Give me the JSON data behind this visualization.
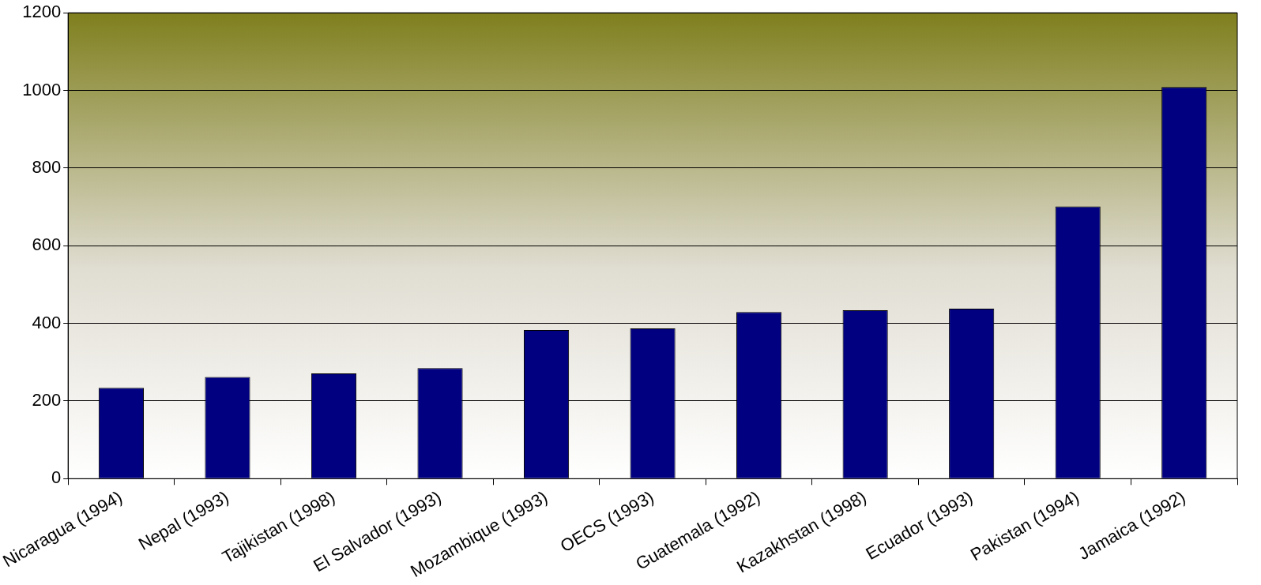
{
  "chart_data": {
    "type": "bar",
    "categories": [
      "Nicaragua (1994)",
      "Nepal (1993)",
      "Tajikistan (1998)",
      "El Salvador (1993)",
      "Mozambique (1993)",
      "OECS (1993)",
      "Guatemala (1992)",
      "Kazakhstan (1998)",
      "Ecuador (1993)",
      "Pakistan (1994)",
      "Jamaica (1992)"
    ],
    "values": [
      234,
      262,
      271,
      285,
      383,
      387,
      429,
      434,
      438,
      701,
      1009
    ],
    "color": "#000080",
    "ylim": [
      0,
      1200
    ],
    "yticks": [
      0,
      200,
      400,
      600,
      800,
      1000,
      1200
    ],
    "grid": "y",
    "legend": false
  }
}
